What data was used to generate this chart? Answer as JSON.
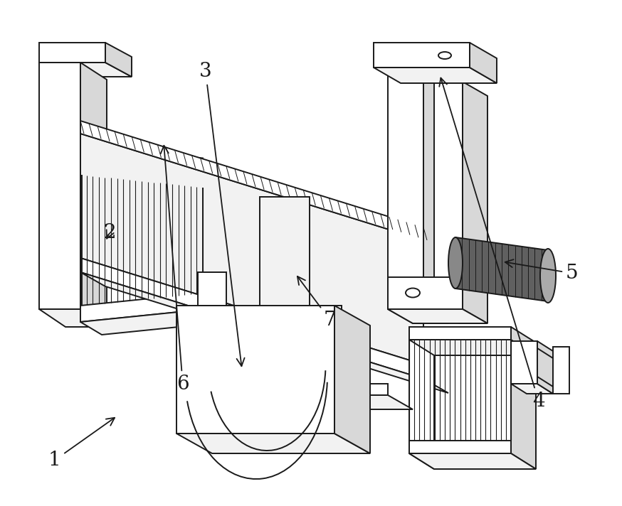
{
  "bg_color": "#ffffff",
  "line_color": "#1a1a1a",
  "lw": 1.4,
  "lw_thin": 0.8,
  "lw_thick": 2.0,
  "gray1": "#f2f2f2",
  "gray2": "#d8d8d8",
  "gray3": "#b8b8b8",
  "gray_dark": "#606060",
  "figsize": [
    8.74,
    7.12
  ],
  "dpi": 100,
  "font_size": 20
}
